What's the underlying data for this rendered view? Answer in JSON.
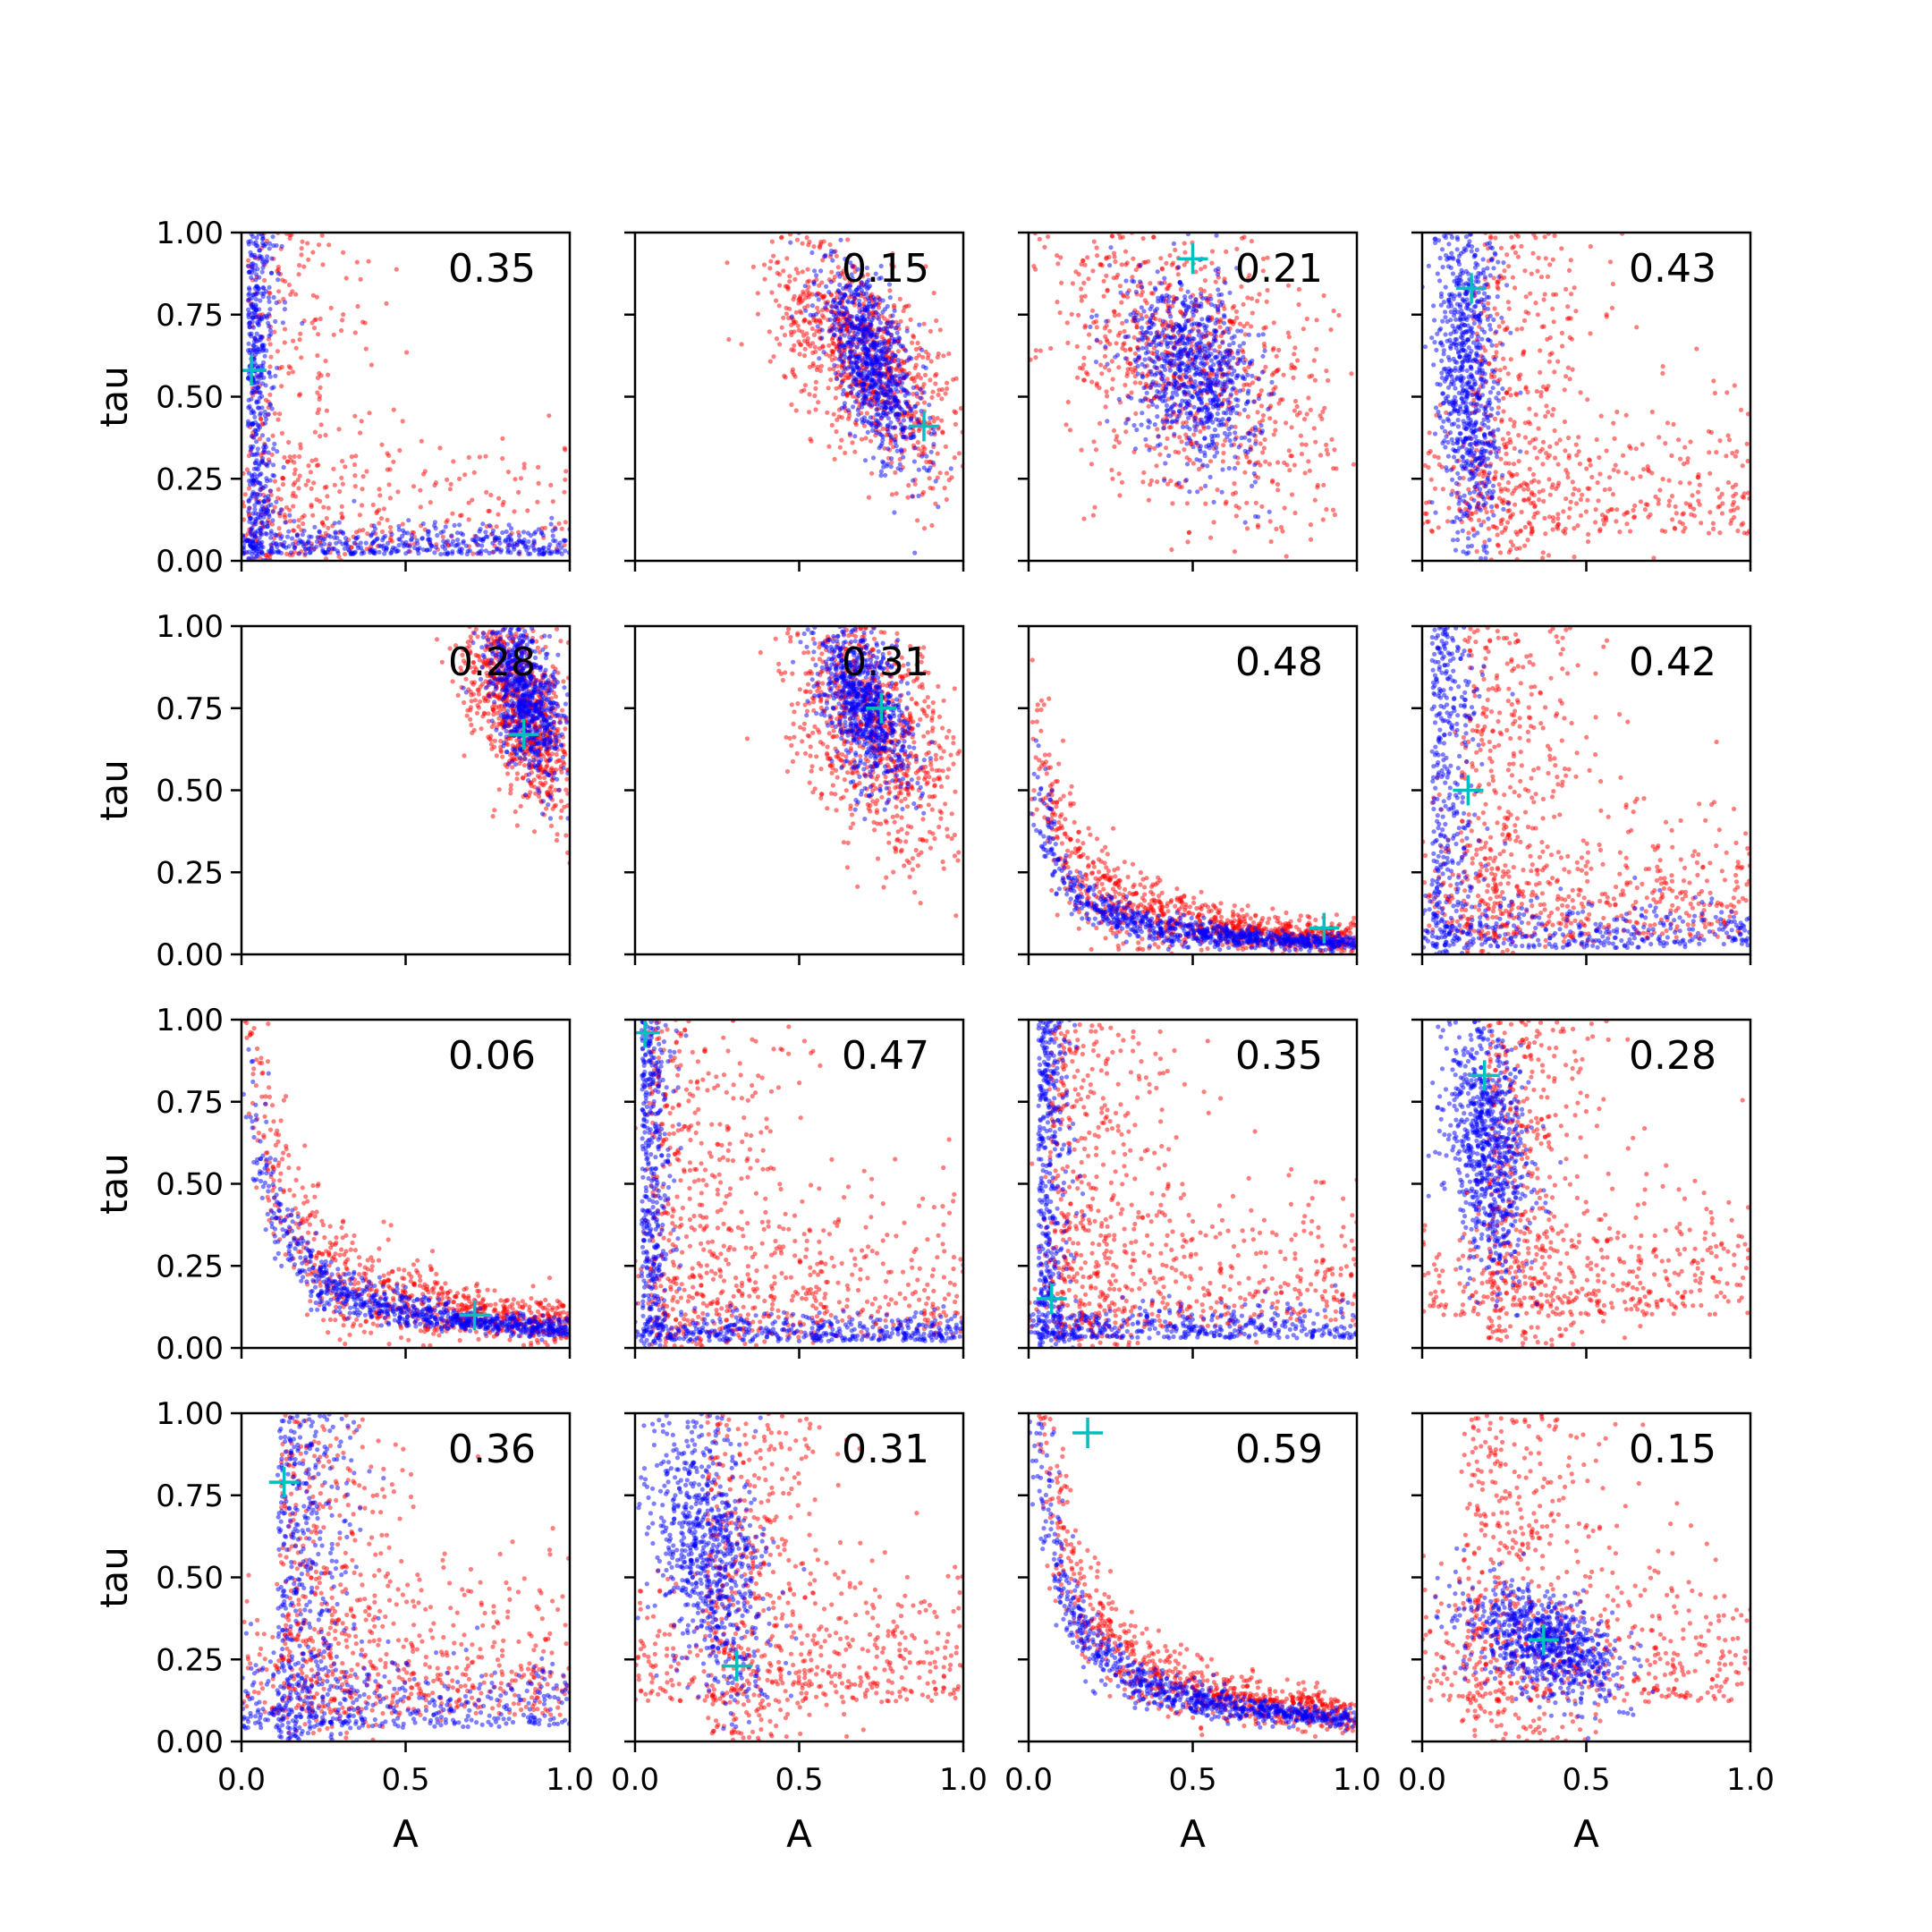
{
  "chart_data": {
    "type": "scatter",
    "grid": false,
    "rows": 4,
    "cols": 4,
    "xlabel": "A",
    "ylabel": "tau",
    "xlim": [
      0,
      1
    ],
    "ylim": [
      0,
      1
    ],
    "xticks": [
      "0.0",
      "0.5",
      "1.0"
    ],
    "yticks": [
      "0.00",
      "0.25",
      "0.50",
      "0.75",
      "1.00"
    ],
    "series_colors": {
      "red": "#ff0000",
      "blue": "#0000ff",
      "marker": "#00bfbf"
    },
    "panels": [
      {
        "label": "0.35",
        "marker": [
          0.03,
          0.58
        ],
        "red": {
          "shape": "L",
          "cx": 0.02,
          "cy": 0.02,
          "spread": 0.5,
          "n": 500
        },
        "blue": {
          "shape": "L",
          "cx": 0.02,
          "cy": 0.02,
          "spread": 0.12,
          "n": 900
        }
      },
      {
        "label": "0.15",
        "marker": [
          0.88,
          0.41
        ],
        "red": {
          "shape": "ellipse",
          "cx": 0.7,
          "cy": 0.62,
          "sx": 0.14,
          "sy": 0.18,
          "rho": -0.6,
          "n": 900
        },
        "blue": {
          "shape": "ellipse",
          "cx": 0.72,
          "cy": 0.6,
          "sx": 0.08,
          "sy": 0.16,
          "rho": -0.7,
          "n": 800
        }
      },
      {
        "label": "0.21",
        "marker": [
          0.5,
          0.92
        ],
        "red": {
          "shape": "ellipse",
          "cx": 0.48,
          "cy": 0.6,
          "sx": 0.22,
          "sy": 0.24,
          "rho": -0.4,
          "n": 900
        },
        "blue": {
          "shape": "ellipse",
          "cx": 0.5,
          "cy": 0.58,
          "sx": 0.1,
          "sy": 0.14,
          "rho": -0.3,
          "n": 800
        }
      },
      {
        "label": "0.43",
        "marker": [
          0.15,
          0.83
        ],
        "red": {
          "shape": "L",
          "cx": 0.15,
          "cy": 0.08,
          "spread": 0.55,
          "n": 700
        },
        "blue": {
          "shape": "ellipse",
          "cx": 0.14,
          "cy": 0.55,
          "sx": 0.05,
          "sy": 0.28,
          "rho": -0.2,
          "n": 800
        }
      },
      {
        "label": "0.28",
        "marker": [
          0.86,
          0.67
        ],
        "red": {
          "shape": "ellipse",
          "cx": 0.85,
          "cy": 0.75,
          "sx": 0.09,
          "sy": 0.16,
          "rho": -0.6,
          "n": 900
        },
        "blue": {
          "shape": "ellipse",
          "cx": 0.87,
          "cy": 0.78,
          "sx": 0.06,
          "sy": 0.12,
          "rho": -0.5,
          "n": 700
        }
      },
      {
        "label": "0.31",
        "marker": [
          0.75,
          0.75
        ],
        "red": {
          "shape": "ellipse",
          "cx": 0.72,
          "cy": 0.7,
          "sx": 0.13,
          "sy": 0.2,
          "rho": -0.5,
          "n": 900
        },
        "blue": {
          "shape": "ellipse",
          "cx": 0.7,
          "cy": 0.76,
          "sx": 0.07,
          "sy": 0.13,
          "rho": -0.5,
          "n": 800
        }
      },
      {
        "label": "0.48",
        "marker": [
          0.9,
          0.08
        ],
        "red": {
          "shape": "hyper",
          "k": 0.05,
          "scatter": 0.09,
          "n": 900
        },
        "blue": {
          "shape": "hyper",
          "k": 0.035,
          "scatter": 0.04,
          "n": 800
        }
      },
      {
        "label": "0.42",
        "marker": [
          0.14,
          0.5
        ],
        "red": {
          "shape": "L",
          "cx": 0.12,
          "cy": 0.05,
          "spread": 0.55,
          "n": 800
        },
        "blue": {
          "shape": "L",
          "cx": 0.03,
          "cy": 0.02,
          "spread": 0.2,
          "n": 700
        }
      },
      {
        "label": "0.06",
        "marker": [
          0.71,
          0.1
        ],
        "red": {
          "shape": "hyper",
          "k": 0.08,
          "scatter": 0.13,
          "n": 800
        },
        "blue": {
          "shape": "hyper",
          "k": 0.06,
          "scatter": 0.05,
          "n": 800
        }
      },
      {
        "label": "0.47",
        "marker": [
          0.03,
          0.96
        ],
        "red": {
          "shape": "L",
          "cx": 0.04,
          "cy": 0.03,
          "spread": 0.6,
          "n": 800
        },
        "blue": {
          "shape": "L",
          "cx": 0.02,
          "cy": 0.02,
          "spread": 0.12,
          "n": 800
        }
      },
      {
        "label": "0.35",
        "marker": [
          0.07,
          0.15
        ],
        "red": {
          "shape": "L",
          "cx": 0.06,
          "cy": 0.06,
          "spread": 0.6,
          "n": 800
        },
        "blue": {
          "shape": "L",
          "cx": 0.03,
          "cy": 0.03,
          "spread": 0.13,
          "n": 800
        }
      },
      {
        "label": "0.28",
        "marker": [
          0.19,
          0.83
        ],
        "red": {
          "shape": "L",
          "cx": 0.2,
          "cy": 0.1,
          "spread": 0.5,
          "n": 800
        },
        "blue": {
          "shape": "ellipse",
          "cx": 0.2,
          "cy": 0.62,
          "sx": 0.06,
          "sy": 0.2,
          "rho": -0.3,
          "n": 800
        }
      },
      {
        "label": "0.36",
        "marker": [
          0.13,
          0.79
        ],
        "red": {
          "shape": "L",
          "cx": 0.12,
          "cy": 0.08,
          "spread": 0.55,
          "n": 800
        },
        "blue": {
          "shape": "L",
          "cx": 0.11,
          "cy": 0.04,
          "spread": 0.3,
          "n": 800
        }
      },
      {
        "label": "0.31",
        "marker": [
          0.31,
          0.23
        ],
        "red": {
          "shape": "L",
          "cx": 0.22,
          "cy": 0.12,
          "spread": 0.55,
          "n": 800
        },
        "blue": {
          "shape": "ellipse",
          "cx": 0.22,
          "cy": 0.58,
          "sx": 0.09,
          "sy": 0.22,
          "rho": -0.4,
          "n": 800
        }
      },
      {
        "label": "0.59",
        "marker": [
          0.18,
          0.94
        ],
        "red": {
          "shape": "hyper",
          "k": 0.09,
          "scatter": 0.1,
          "n": 800
        },
        "blue": {
          "shape": "hyper",
          "k": 0.07,
          "scatter": 0.05,
          "n": 800
        }
      },
      {
        "label": "0.15",
        "marker": [
          0.37,
          0.31
        ],
        "red": {
          "shape": "L",
          "cx": 0.12,
          "cy": 0.12,
          "spread": 0.6,
          "n": 800
        },
        "blue": {
          "shape": "ellipse",
          "cx": 0.37,
          "cy": 0.3,
          "sx": 0.12,
          "sy": 0.09,
          "rho": -0.5,
          "n": 800
        }
      }
    ]
  }
}
